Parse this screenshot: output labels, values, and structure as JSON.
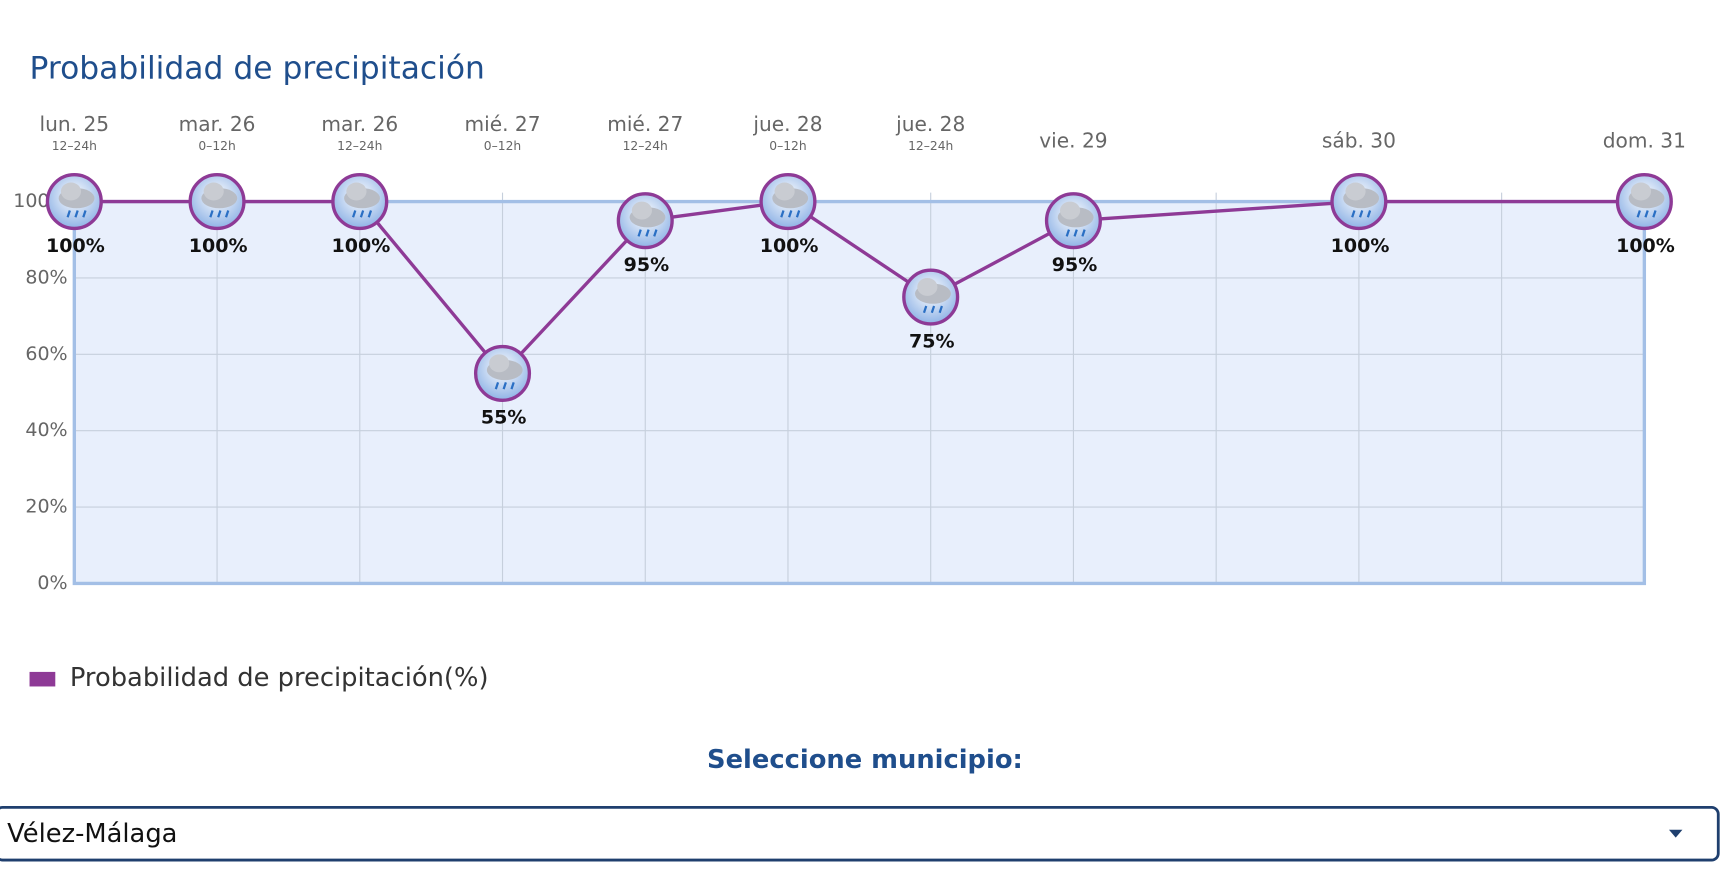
{
  "chart_data": {
    "type": "line",
    "title": "Probabilidad de precipitación",
    "categories": [
      "lun. 25",
      "mar. 26",
      "mar. 26",
      "mié. 27",
      "mié. 27",
      "jue. 28",
      "jue. 28",
      "vie. 29",
      "sáb. 30",
      "dom. 31"
    ],
    "periods": [
      "12–24h",
      "0–12h",
      "12–24h",
      "0–12h",
      "12–24h",
      "0–12h",
      "12–24h",
      null,
      null,
      null
    ],
    "series": [
      {
        "name": "Probabilidad de precipitación(%)",
        "color": "#8e3a96",
        "values": [
          100,
          100,
          100,
          55,
          95,
          100,
          75,
          95,
          100,
          100
        ],
        "value_labels": [
          "100%",
          "100%",
          "100%",
          "55%",
          "95%",
          "100%",
          "75%",
          "95%",
          "100%",
          "100%"
        ]
      }
    ],
    "ylim": [
      0,
      100
    ],
    "yticks": [
      {
        "value": 0,
        "label": "0%"
      },
      {
        "value": 20,
        "label": "20%"
      },
      {
        "value": 40,
        "label": "40%"
      },
      {
        "value": 60,
        "label": "60%"
      },
      {
        "value": 80,
        "label": "80%"
      },
      {
        "value": 100,
        "label": "100%"
      }
    ],
    "grid": true
  },
  "selector": {
    "label": "Seleccione municipio:",
    "value": "Vélez-Málaga"
  }
}
